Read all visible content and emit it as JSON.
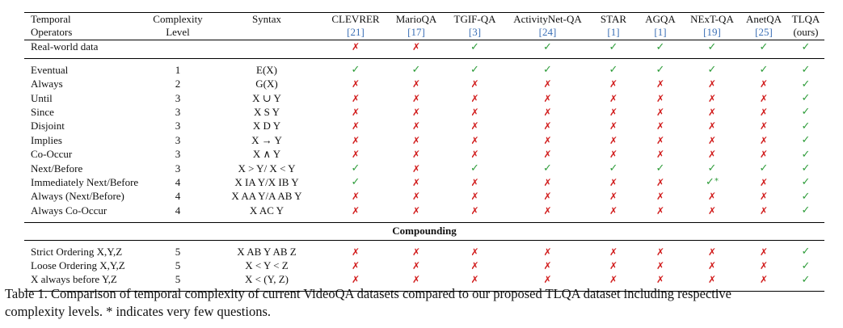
{
  "marks": {
    "check": "✓",
    "cross": "✗"
  },
  "header": {
    "operators": [
      "Temporal",
      "Operators"
    ],
    "complexity": [
      "Complexity",
      "Level"
    ],
    "syntax": "Syntax",
    "datasets": [
      {
        "name": "CLEVRER",
        "ref": "[21]"
      },
      {
        "name": "MarioQA",
        "ref": "[17]"
      },
      {
        "name": "TGIF-QA",
        "ref": "[3]"
      },
      {
        "name": "ActivityNet-QA",
        "ref": "[24]"
      },
      {
        "name": "STAR",
        "ref": "[1]"
      },
      {
        "name": "AGQA",
        "ref": "[1]"
      },
      {
        "name": "NExT-QA",
        "ref": "[19]"
      },
      {
        "name": "AnetQA",
        "ref": "[25]"
      },
      {
        "name": "TLQA",
        "ref": "(ours)"
      }
    ]
  },
  "realworld": {
    "label": "Real-world data",
    "marks": [
      "cross",
      "cross",
      "check",
      "check",
      "check",
      "check",
      "check",
      "check",
      "check"
    ]
  },
  "operators": [
    {
      "name": "Eventual",
      "level": "1",
      "syntax": "E(X)",
      "marks": [
        "check",
        "check",
        "check",
        "check",
        "check",
        "check",
        "check",
        "check",
        "check"
      ]
    },
    {
      "name": "Always",
      "level": "2",
      "syntax": "G(X)",
      "marks": [
        "cross",
        "cross",
        "cross",
        "cross",
        "cross",
        "cross",
        "cross",
        "cross",
        "check"
      ]
    },
    {
      "name": "Until",
      "level": "3",
      "syntax": "X ∪ Y",
      "marks": [
        "cross",
        "cross",
        "cross",
        "cross",
        "cross",
        "cross",
        "cross",
        "cross",
        "check"
      ]
    },
    {
      "name": "Since",
      "level": "3",
      "syntax": "X S Y",
      "marks": [
        "cross",
        "cross",
        "cross",
        "cross",
        "cross",
        "cross",
        "cross",
        "cross",
        "check"
      ]
    },
    {
      "name": "Disjoint",
      "level": "3",
      "syntax": "X D Y",
      "marks": [
        "cross",
        "cross",
        "cross",
        "cross",
        "cross",
        "cross",
        "cross",
        "cross",
        "check"
      ]
    },
    {
      "name": "Implies",
      "level": "3",
      "syntax": "X → Y",
      "marks": [
        "cross",
        "cross",
        "cross",
        "cross",
        "cross",
        "cross",
        "cross",
        "cross",
        "check"
      ]
    },
    {
      "name": "Co-Occur",
      "level": "3",
      "syntax": "X ∧ Y",
      "marks": [
        "cross",
        "cross",
        "cross",
        "cross",
        "cross",
        "cross",
        "cross",
        "cross",
        "check"
      ]
    },
    {
      "name": "Next/Before",
      "level": "3",
      "syntax": "X > Y/ X < Y",
      "marks": [
        "check",
        "cross",
        "check",
        "check",
        "check",
        "check",
        "check",
        "check",
        "check"
      ]
    },
    {
      "name": "Immediately Next/Before",
      "level": "4",
      "syntax": "X IA Y/X IB Y",
      "marks": [
        "check",
        "cross",
        "cross",
        "cross",
        "cross",
        "cross",
        "check*",
        "cross",
        "check"
      ]
    },
    {
      "name": "Always (Next/Before)",
      "level": "4",
      "syntax": "X AA Y/A AB Y",
      "marks": [
        "cross",
        "cross",
        "cross",
        "cross",
        "cross",
        "cross",
        "cross",
        "cross",
        "check"
      ]
    },
    {
      "name": "Always Co-Occur",
      "level": "4",
      "syntax": "X AC Y",
      "marks": [
        "cross",
        "cross",
        "cross",
        "cross",
        "cross",
        "cross",
        "cross",
        "cross",
        "check"
      ]
    }
  ],
  "compounding": {
    "label": "Compounding",
    "rows": [
      {
        "name": "Strict Ordering X,Y,Z",
        "level": "5",
        "syntax": "X AB Y AB Z",
        "marks": [
          "cross",
          "cross",
          "cross",
          "cross",
          "cross",
          "cross",
          "cross",
          "cross",
          "check"
        ]
      },
      {
        "name": "Loose Ordering X,Y,Z",
        "level": "5",
        "syntax": "X < Y < Z",
        "marks": [
          "cross",
          "cross",
          "cross",
          "cross",
          "cross",
          "cross",
          "cross",
          "cross",
          "check"
        ]
      },
      {
        "name": "X always before Y,Z",
        "level": "5",
        "syntax": "X < (Y, Z)",
        "marks": [
          "cross",
          "cross",
          "cross",
          "cross",
          "cross",
          "cross",
          "cross",
          "cross",
          "check"
        ]
      }
    ]
  },
  "caption": [
    "Table 1. Comparison of temporal complexity of current VideoQA datasets compared to our proposed TLQA dataset including respective",
    "complexity levels. * indicates very few questions."
  ]
}
